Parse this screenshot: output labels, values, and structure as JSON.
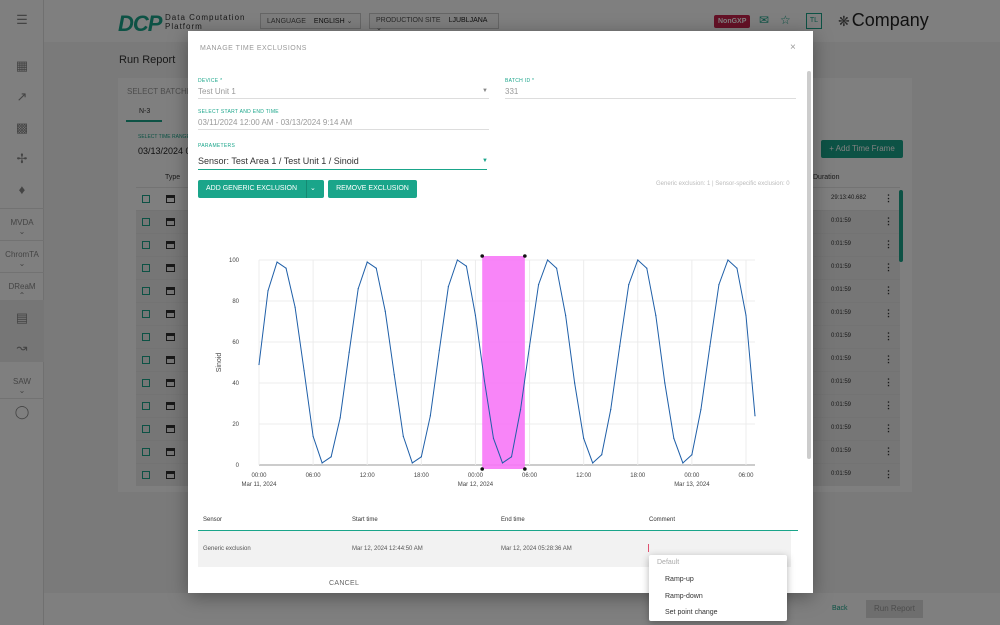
{
  "app": {
    "logo_mark": "DCP",
    "logo_line1": "Data Computation",
    "logo_line2": "Platform",
    "language_label": "LANGUAGE",
    "language_value": "ENGLISH",
    "site_label": "PRODUCTION SITE",
    "site_value": "LJUBLJANA",
    "badge": "NonGXP",
    "user_initials": "TL",
    "company": "Company",
    "accent_color": "#1aa58a",
    "badge_color": "#c8234d"
  },
  "sidebar": {
    "groups": [
      "MVDA",
      "ChromTA",
      "DReaM",
      "SAW"
    ]
  },
  "page": {
    "title": "Run Report",
    "card_header": "SELECT BATCHES",
    "tab": "N-3",
    "time_range_label": "SELECT TIME RANGE",
    "time_range_value": "03/13/2024 0",
    "add_time_frame": "+ Add Time Frame",
    "col_type": "Type",
    "col_duration": "Duration",
    "durations": [
      "29:13:40.682",
      "0:01:59",
      "0:01:59",
      "0:01:59",
      "0:01:59",
      "0:01:59",
      "0:01:59",
      "0:01:59",
      "0:01:59",
      "0:01:59",
      "0:01:59",
      "0:01:59",
      "0:01:59"
    ],
    "back": "Back",
    "run_report": "Run Report"
  },
  "modal": {
    "title": "MANAGE TIME EXCLUSIONS",
    "close": "×",
    "device_label": "DEVICE *",
    "device_value": "Test Unit 1",
    "batch_label": "BATCH ID *",
    "batch_value": "331",
    "range_label": "SELECT START AND END TIME",
    "range_value": "03/11/2024 12:00 AM - 03/13/2024 9:14 AM",
    "params_label": "PARAMETERS",
    "params_value": "Sensor: Test Area 1 / Test Unit 1 / Sinoid",
    "add_generic": "ADD GENERIC EXCLUSION",
    "remove_exclusion": "REMOVE EXCLUSION",
    "exclusion_summary": "Generic exclusion: 1 | Sensor-specific exclusion: 0",
    "table": {
      "headers": [
        "Sensor",
        "Start time",
        "End time",
        "Comment"
      ],
      "row": {
        "sensor": "Generic exclusion",
        "start": "Mar 12, 2024 12:44:50 AM",
        "end": "Mar 12, 2024 05:28:36 AM",
        "comment": ""
      }
    },
    "cancel": "CANCEL",
    "comment_options": [
      "Default",
      "Ramp-up",
      "Ramp-down",
      "Set point change"
    ]
  },
  "chart_data": {
    "type": "line",
    "ylabel": "Sinoid",
    "xlabel": "",
    "ylim": [
      0,
      100
    ],
    "yticks": [
      0,
      20,
      40,
      60,
      80,
      100
    ],
    "xlim": [
      0,
      55
    ],
    "xticks": [
      {
        "x": 0,
        "label": "00:00",
        "date": "Mar 11, 2024"
      },
      {
        "x": 6,
        "label": "06:00",
        "date": ""
      },
      {
        "x": 12,
        "label": "12:00",
        "date": ""
      },
      {
        "x": 18,
        "label": "18:00",
        "date": ""
      },
      {
        "x": 24,
        "label": "00:00",
        "date": "Mar 12, 2024"
      },
      {
        "x": 30,
        "label": "06:00",
        "date": ""
      },
      {
        "x": 36,
        "label": "12:00",
        "date": ""
      },
      {
        "x": 42,
        "label": "18:00",
        "date": ""
      },
      {
        "x": 48,
        "label": "00:00",
        "date": "Mar 13, 2024"
      },
      {
        "x": 54,
        "label": "06:00",
        "date": ""
      }
    ],
    "series": [
      {
        "name": "",
        "color": "#1f5fa8",
        "x": [
          0,
          1,
          2,
          3,
          4,
          5,
          6,
          7,
          8,
          9,
          10,
          11,
          12,
          13,
          14,
          15,
          16,
          17,
          18,
          19,
          20,
          21,
          22,
          23,
          24,
          25,
          26,
          27,
          28,
          29,
          30,
          31,
          32,
          33,
          34,
          35,
          36,
          37,
          38,
          39,
          40,
          41,
          42,
          43,
          44,
          45,
          46,
          47,
          48,
          49,
          50,
          51,
          52,
          53,
          54,
          55
        ],
        "y": [
          49,
          85,
          99,
          96,
          77,
          46,
          14,
          1,
          4,
          23,
          55,
          86,
          99,
          96,
          75,
          44,
          14,
          1,
          4,
          24,
          56,
          87,
          100,
          97,
          73,
          41,
          13,
          1,
          4,
          27,
          58,
          88,
          100,
          96,
          73,
          40,
          13,
          1,
          5,
          27,
          58,
          88,
          100,
          96,
          73,
          40,
          13,
          1,
          5,
          27,
          58,
          88,
          100,
          96,
          73,
          24
        ]
      }
    ],
    "exclusion": {
      "x_start": 24.75,
      "x_end": 29.48,
      "color": "#f778f7"
    },
    "grid": true
  }
}
